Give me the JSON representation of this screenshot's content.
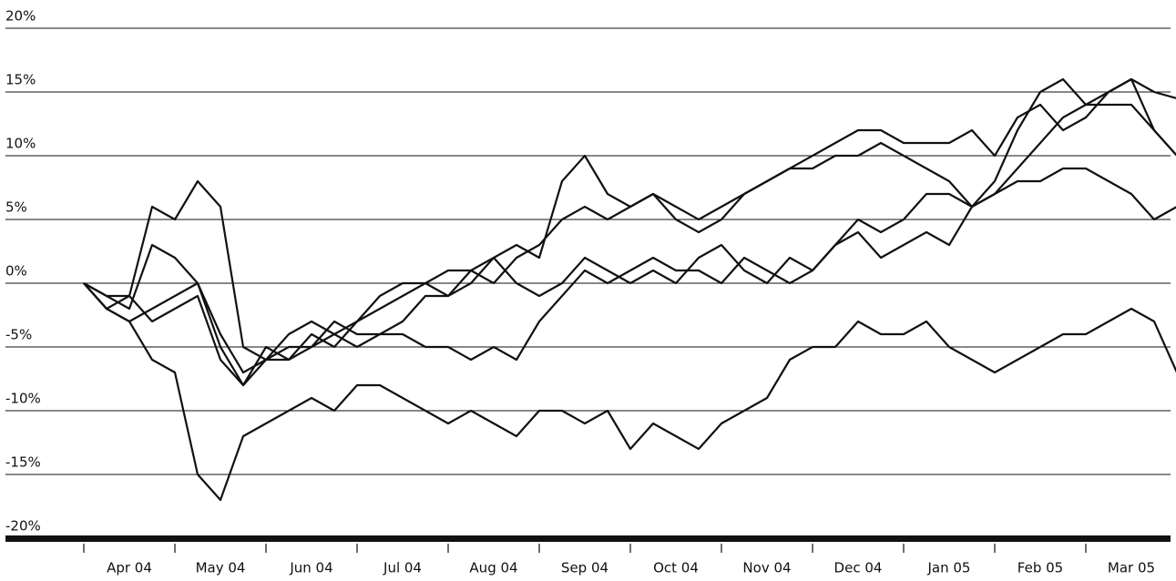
{
  "chart_data": {
    "type": "line",
    "categories": [
      null,
      null,
      "Apr 04",
      null,
      null,
      null,
      "May 04",
      null,
      null,
      null,
      "Jun 04",
      null,
      null,
      null,
      "Jul 04",
      null,
      null,
      null,
      "Aug 04",
      null,
      null,
      null,
      "Sep 04",
      null,
      null,
      null,
      "Oct 04",
      null,
      null,
      null,
      "Nov 04",
      null,
      null,
      null,
      "Dec 04",
      null,
      null,
      null,
      "Jan 05",
      null,
      null,
      null,
      "Feb 05",
      null,
      null,
      null,
      "Mar 05",
      null,
      null
    ],
    "series": [
      {
        "color": "#111111",
        "values": [
          0,
          -2,
          -3,
          -6,
          -7,
          -15,
          -17,
          -12,
          -11,
          -10,
          -9,
          -10,
          -8,
          -8,
          -9,
          -10,
          -11,
          -10,
          -11,
          -12,
          -10,
          -10,
          -11,
          -10,
          -13,
          -11,
          -12,
          -13,
          -11,
          -10,
          -9,
          -6,
          -5,
          -5,
          -3,
          -4,
          -4,
          -3,
          -5,
          -6,
          -7,
          -6,
          -5,
          -4,
          -4,
          -3,
          -2,
          -3,
          -7
        ]
      },
      {
        "color": "#111111",
        "values": [
          0,
          -2,
          -1,
          6,
          5,
          8,
          6,
          -5,
          -6,
          -6,
          -5,
          -4,
          -5,
          -4,
          -4,
          -5,
          -5,
          -6,
          -5,
          -6,
          -3,
          -1,
          1,
          0,
          1,
          2,
          1,
          1,
          0,
          2,
          1,
          0,
          1,
          3,
          5,
          4,
          5,
          7,
          7,
          6,
          7,
          8,
          8,
          9,
          9,
          8,
          7,
          5,
          6
        ]
      },
      {
        "color": "#111111",
        "values": [
          0,
          -1,
          -2,
          3,
          2,
          0,
          -4,
          -7,
          -6,
          -5,
          -5,
          -3,
          -4,
          -4,
          -3,
          -1,
          -1,
          0,
          2,
          3,
          2,
          8,
          10,
          7,
          6,
          7,
          5,
          4,
          5,
          7,
          8,
          9,
          10,
          11,
          12,
          12,
          11,
          11,
          11,
          12,
          10,
          13,
          14,
          12,
          13,
          15,
          16,
          15,
          14.5
        ]
      },
      {
        "color": "#111111",
        "values": [
          0,
          -2,
          -3,
          -2,
          -1,
          0,
          -5,
          -8,
          -6,
          -4,
          -3,
          -4,
          -3,
          -1,
          0,
          0,
          -1,
          1,
          2,
          0,
          -1,
          0,
          2,
          1,
          0,
          1,
          0,
          2,
          3,
          1,
          0,
          2,
          1,
          3,
          4,
          2,
          3,
          4,
          3,
          6,
          8,
          12,
          15,
          16,
          14,
          15,
          16,
          12,
          10
        ]
      },
      {
        "color": "#111111",
        "values": [
          0,
          -1,
          -1,
          -3,
          -2,
          -1,
          -6,
          -8,
          -5,
          -6,
          -4,
          -5,
          -3,
          -2,
          -1,
          0,
          1,
          1,
          0,
          2,
          3,
          5,
          6,
          5,
          6,
          7,
          6,
          5,
          6,
          7,
          8,
          9,
          9,
          10,
          10,
          11,
          10,
          9,
          8,
          6,
          7,
          9,
          11,
          13,
          14,
          14,
          14,
          12,
          10
        ]
      }
    ],
    "ylim": [
      -20,
      20
    ],
    "yticks": [
      {
        "value": -20,
        "label": "-20%"
      },
      {
        "value": -15,
        "label": "-15%"
      },
      {
        "value": -10,
        "label": "-10%"
      },
      {
        "value": -5,
        "label": "-5%"
      },
      {
        "value": 0,
        "label": "0%"
      },
      {
        "value": 5,
        "label": "5%"
      },
      {
        "value": 10,
        "label": "10%"
      },
      {
        "value": 15,
        "label": "15%"
      },
      {
        "value": 20,
        "label": "20%"
      }
    ],
    "grid": true
  }
}
